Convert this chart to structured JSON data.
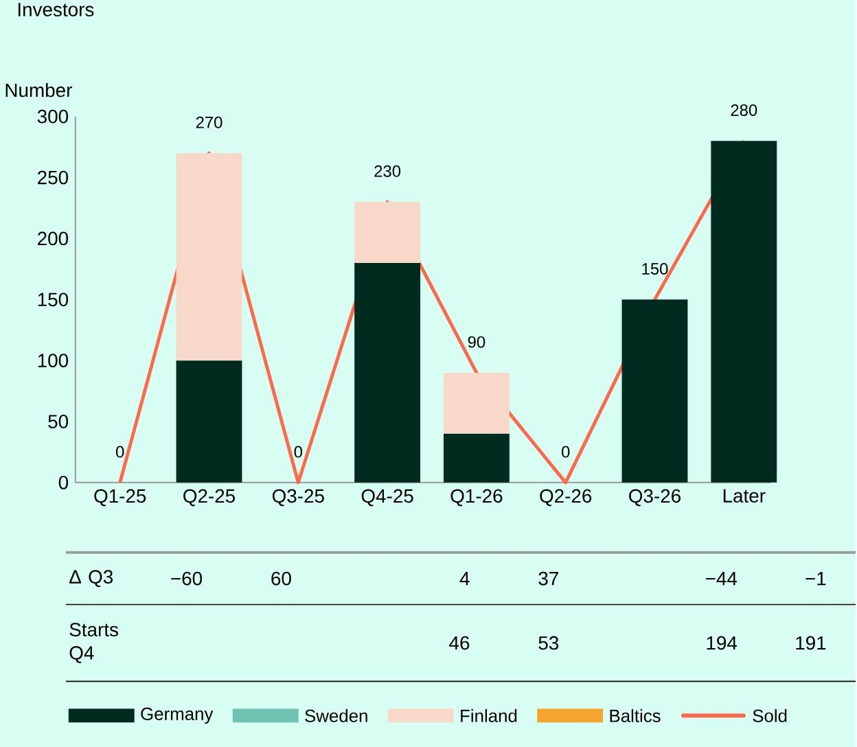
{
  "chart_data": {
    "type": "bar",
    "title": "Investors",
    "ylabel": "Number",
    "stacked": true,
    "categories": [
      "Q1-25",
      "Q2-25",
      "Q3-25",
      "Q4-25",
      "Q1-26",
      "Q2-26",
      "Q3-26",
      "Later"
    ],
    "series": [
      {
        "name": "Germany",
        "color": "#022b20",
        "values": [
          0,
          100,
          0,
          180,
          40,
          0,
          150,
          280
        ]
      },
      {
        "name": "Sweden",
        "color": "#6fc3b2",
        "values": [
          0,
          0,
          0,
          0,
          0,
          0,
          0,
          0
        ]
      },
      {
        "name": "Finland",
        "color": "#f8d8c8",
        "values": [
          0,
          170,
          0,
          50,
          50,
          0,
          0,
          0
        ]
      },
      {
        "name": "Baltics",
        "color": "#f7a531",
        "values": [
          0,
          0,
          0,
          0,
          0,
          0,
          0,
          0
        ]
      },
      {
        "name": "Sold",
        "type": "line",
        "color": "#fb6a4c",
        "values": [
          0,
          270,
          0,
          230,
          90,
          0,
          150,
          280
        ]
      }
    ],
    "totals": [
      "0",
      "270",
      "0",
      "230",
      "90",
      "0",
      "150",
      "280"
    ],
    "ylim": [
      0,
      300
    ],
    "yticks": [
      0,
      50,
      100,
      150,
      200,
      250,
      300
    ],
    "grid": false,
    "legend": "bottom",
    "annotations": [
      "Δ Q3",
      "−60",
      "60",
      "4",
      "37",
      "−44",
      "−1",
      "Starts Q4",
      "46",
      "53",
      "194",
      "191"
    ]
  }
}
